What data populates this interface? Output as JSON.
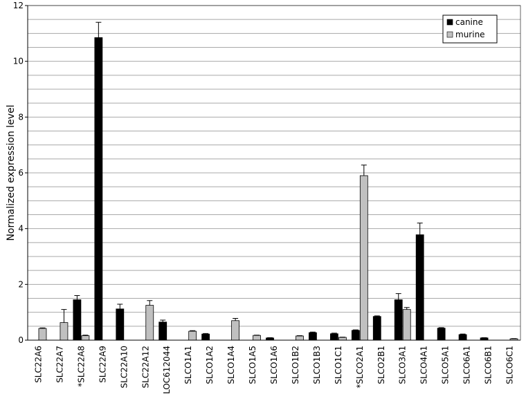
{
  "chart_data": {
    "type": "bar",
    "y_label": "Normalized  expression  level",
    "categories": [
      "SLC22A6",
      "SLC22A7",
      "*SLC22A8",
      "SLC22A9",
      "SLC22A10",
      "SLC22A12",
      "LOC612044",
      "SLCO1A1",
      "SLCO1A2",
      "SLCO1A4",
      "SLCO1A5",
      "SLCO1A6",
      "SLCO1B2",
      "SLCO1B3",
      "SLCO1C1",
      "*SLCO2A1",
      "SLCO2B1",
      "SLCO3A1",
      "SLCO4A1",
      "SLCO5A1",
      "SLCO6A1",
      "SLCO6B1",
      "SLCO6C1"
    ],
    "series": [
      {
        "name": "canine",
        "color": "#000000",
        "values": [
          null,
          null,
          1.45,
          10.85,
          1.12,
          null,
          0.65,
          null,
          0.22,
          null,
          null,
          0.08,
          null,
          0.27,
          0.23,
          0.35,
          0.85,
          1.45,
          3.78,
          0.43,
          0.2,
          0.08,
          null
        ],
        "errors": [
          null,
          null,
          0.15,
          0.55,
          0.17,
          null,
          0.07,
          null,
          0.02,
          null,
          null,
          0.01,
          null,
          0.02,
          0.02,
          0.02,
          0.02,
          0.22,
          0.42,
          0.02,
          0.02,
          0.01,
          null
        ]
      },
      {
        "name": "murine",
        "color": "#c0c0c0",
        "values": [
          0.42,
          0.63,
          0.16,
          null,
          null,
          1.25,
          null,
          0.32,
          null,
          0.7,
          0.17,
          null,
          0.15,
          null,
          0.1,
          5.9,
          null,
          1.1,
          null,
          null,
          null,
          null,
          0.05
        ],
        "errors": [
          0.02,
          0.47,
          0.02,
          null,
          null,
          0.17,
          null,
          0.02,
          null,
          0.08,
          0.01,
          null,
          0.01,
          null,
          0.01,
          0.38,
          null,
          0.07,
          null,
          null,
          null,
          null,
          0.01
        ]
      }
    ],
    "ylim": [
      0,
      12
    ],
    "yticks": [
      0,
      2,
      4,
      6,
      8,
      10,
      12
    ],
    "gridlines": [
      0.5,
      1,
      1.5,
      2,
      2.5,
      3,
      3.5,
      4,
      4.5,
      5,
      5.5,
      6,
      6.5,
      7,
      7.5,
      8,
      8.5,
      9,
      9.5,
      10,
      10.5,
      11,
      11.5,
      12
    ],
    "legend": "top-right"
  }
}
